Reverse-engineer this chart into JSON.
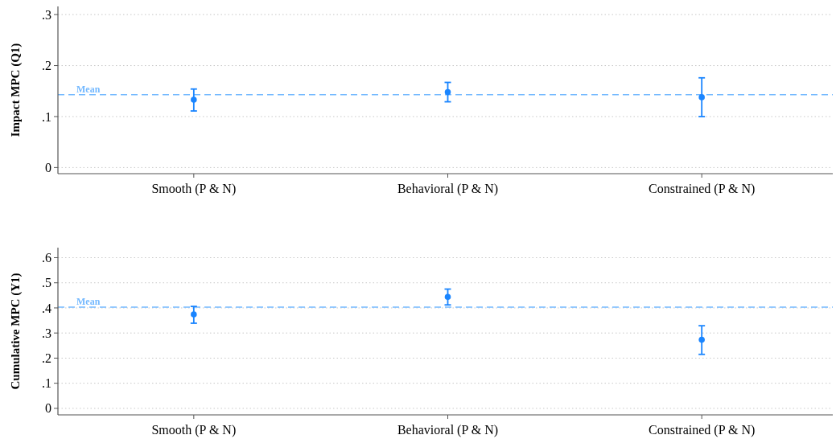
{
  "chart_data": [
    {
      "type": "scatter",
      "ylabel": "Impact MPC (Q1)",
      "categories": [
        "Smooth (P & N)",
        "Behavioral (P & N)",
        "Constrained (P & N)"
      ],
      "values": [
        0.133,
        0.148,
        0.138
      ],
      "errors": [
        [
          0.111,
          0.154
        ],
        [
          0.129,
          0.167
        ],
        [
          0.1,
          0.176
        ]
      ],
      "color": "#1a85ff",
      "marker": "circle",
      "ylim": [
        -0.012,
        0.316
      ],
      "yticks": [
        {
          "value": 0,
          "label": "0"
        },
        {
          "value": 0.1,
          "label": ".1"
        },
        {
          "value": 0.2,
          "label": ".2"
        },
        {
          "value": 0.3,
          "label": ".3"
        }
      ],
      "grid": "y",
      "ref_lines": [
        {
          "axis": "y",
          "value": 0.143,
          "label": "Mean",
          "color": "#74b9ff",
          "line_style": "dashed"
        }
      ]
    },
    {
      "type": "scatter",
      "ylabel": "Cumulative MPC (Y1)",
      "categories": [
        "Smooth (P & N)",
        "Behavioral (P & N)",
        "Constrained (P & N)"
      ],
      "values": [
        0.374,
        0.444,
        0.273
      ],
      "errors": [
        [
          0.339,
          0.406
        ],
        [
          0.412,
          0.475
        ],
        [
          0.215,
          0.329
        ]
      ],
      "color": "#1a85ff",
      "marker": "circle",
      "ylim": [
        -0.026,
        0.64
      ],
      "yticks": [
        {
          "value": 0,
          "label": "0"
        },
        {
          "value": 0.1,
          "label": ".1"
        },
        {
          "value": 0.2,
          "label": ".2"
        },
        {
          "value": 0.3,
          "label": ".3"
        },
        {
          "value": 0.4,
          "label": ".4"
        },
        {
          "value": 0.5,
          "label": ".5"
        },
        {
          "value": 0.6,
          "label": ".6"
        }
      ],
      "grid": "y",
      "ref_lines": [
        {
          "axis": "y",
          "value": 0.403,
          "label": "Mean",
          "color": "#74b9ff",
          "line_style": "dashed"
        }
      ]
    }
  ]
}
